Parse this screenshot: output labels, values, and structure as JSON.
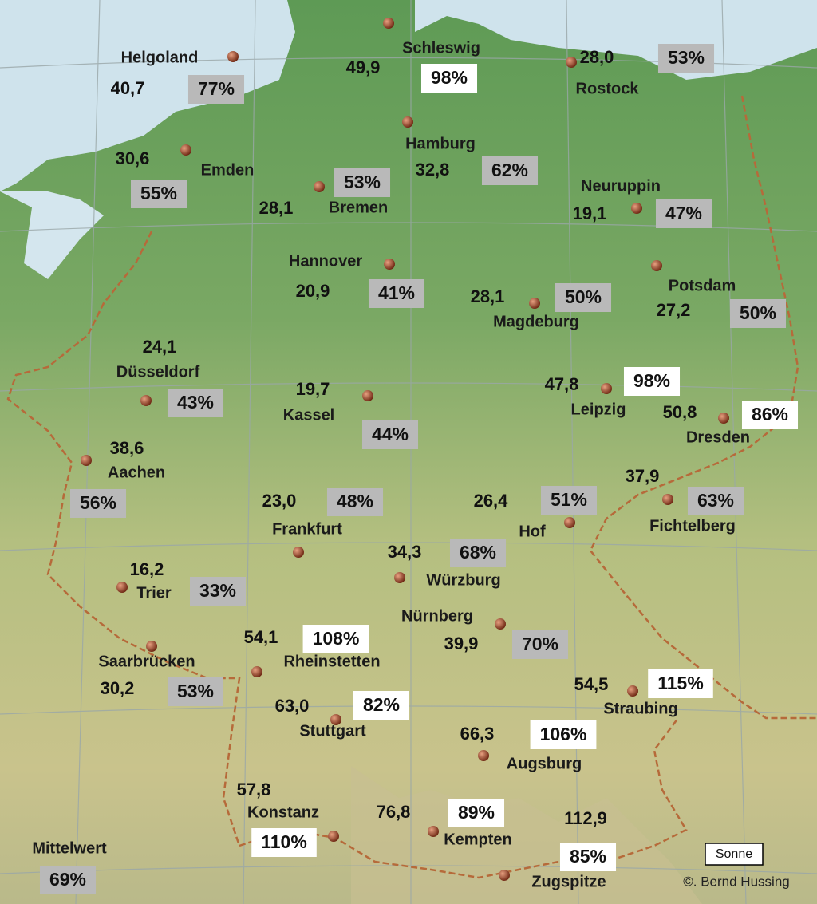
{
  "stations": [
    {
      "name": "Helgoland",
      "value": "40,7",
      "percent": "77%",
      "box_color": "#b9b9b9"
    },
    {
      "name": "Schleswig",
      "value": "49,9",
      "percent": "98%",
      "box_color": "#ffffff"
    },
    {
      "name": "Rostock",
      "value": "28,0",
      "percent": "53%",
      "box_color": "#b9b9b9"
    },
    {
      "name": "Emden",
      "value": "30,6",
      "percent": "55%",
      "box_color": "#b9b9b9"
    },
    {
      "name": "Hamburg",
      "value": "32,8",
      "percent": "62%",
      "box_color": "#b9b9b9"
    },
    {
      "name": "Bremen",
      "value": "28,1",
      "percent": "53%",
      "box_color": "#b9b9b9"
    },
    {
      "name": "Neuruppin",
      "value": "19,1",
      "percent": "47%",
      "box_color": "#b9b9b9"
    },
    {
      "name": "Hannover",
      "value": "20,9",
      "percent": "41%",
      "box_color": "#b9b9b9"
    },
    {
      "name": "Potsdam",
      "value": "27,2",
      "percent": "50%",
      "box_color": "#b9b9b9"
    },
    {
      "name": "Magdeburg",
      "value": "28,1",
      "percent": "50%",
      "box_color": "#b9b9b9"
    },
    {
      "name": "Düsseldorf",
      "value": "24,1",
      "percent": "43%",
      "box_color": "#b9b9b9"
    },
    {
      "name": "Kassel",
      "value": "19,7",
      "percent": "44%",
      "box_color": "#b9b9b9"
    },
    {
      "name": "Leipzig",
      "value": "47,8",
      "percent": "98%",
      "box_color": "#ffffff"
    },
    {
      "name": "Dresden",
      "value": "50,8",
      "percent": "86%",
      "box_color": "#ffffff"
    },
    {
      "name": "Aachen",
      "value": "38,6",
      "percent": "56%",
      "box_color": "#b9b9b9"
    },
    {
      "name": "Frankfurt",
      "value": "23,0",
      "percent": "48%",
      "box_color": "#b9b9b9"
    },
    {
      "name": "Hof",
      "value": "26,4",
      "percent": "51%",
      "box_color": "#b9b9b9"
    },
    {
      "name": "Fichtelberg",
      "value": "37,9",
      "percent": "63%",
      "box_color": "#b9b9b9"
    },
    {
      "name": "Würzburg",
      "value": "34,3",
      "percent": "68%",
      "box_color": "#b9b9b9"
    },
    {
      "name": "Trier",
      "value": "16,2",
      "percent": "33%",
      "box_color": "#b9b9b9"
    },
    {
      "name": "Nürnberg",
      "value": "39,9",
      "percent": "70%",
      "box_color": "#b9b9b9"
    },
    {
      "name": "Saarbrücken",
      "value": "30,2",
      "percent": "53%",
      "box_color": "#b9b9b9"
    },
    {
      "name": "Rheinstetten",
      "value": "54,1",
      "percent": "108%",
      "box_color": "#ffffff"
    },
    {
      "name": "Straubing",
      "value": "54,5",
      "percent": "115%",
      "box_color": "#ffffff"
    },
    {
      "name": "Stuttgart",
      "value": "63,0",
      "percent": "82%",
      "box_color": "#ffffff"
    },
    {
      "name": "Augsburg",
      "value": "66,3",
      "percent": "106%",
      "box_color": "#ffffff"
    },
    {
      "name": "Konstanz",
      "value": "57,8",
      "percent": "110%",
      "box_color": "#ffffff"
    },
    {
      "name": "Kempten",
      "value": "76,8",
      "percent": "89%",
      "box_color": "#ffffff"
    },
    {
      "name": "Zugspitze",
      "value": "112,9",
      "percent": "85%",
      "box_color": "#ffffff"
    }
  ],
  "mean": {
    "label": "Mittelwert",
    "percent": "69%",
    "box_color": "#b9b9b9"
  },
  "legend": "Sonne",
  "credit": "©. Bernd Hussing"
}
